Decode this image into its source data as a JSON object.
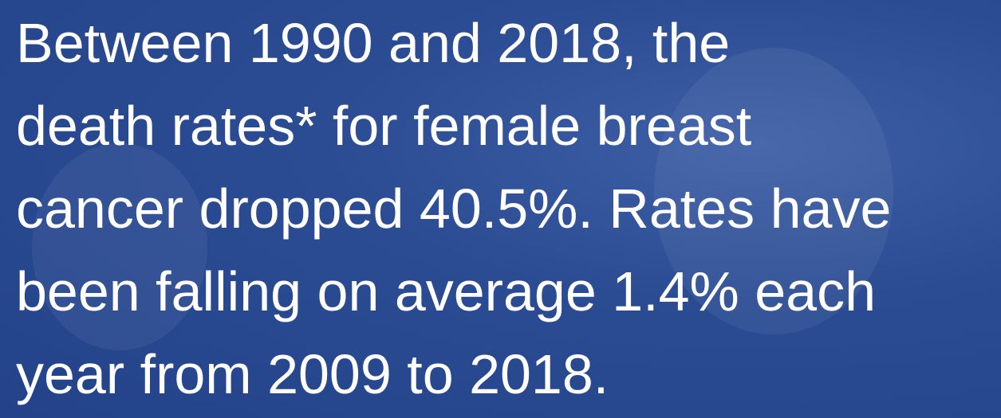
{
  "text": {
    "lines": [
      "Between 1990 and 2018, the",
      "death rates* for female breast",
      "cancer dropped 40.5%. Rates have",
      "been falling on average 1.4% each",
      "year from 2009 to 2018."
    ]
  }
}
